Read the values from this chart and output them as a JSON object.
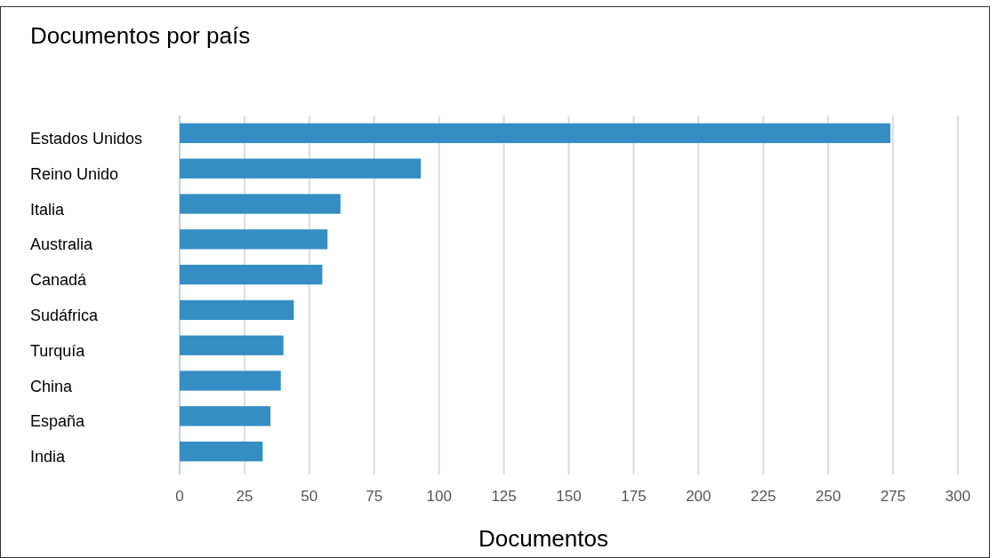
{
  "chart_data": {
    "type": "bar",
    "orientation": "horizontal",
    "title": "Documentos por país",
    "xlabel": "Documentos",
    "categories": [
      "Estados Unidos",
      "Reino Unido",
      "Italia",
      "Australia",
      "Canadá",
      "Sudáfrica",
      "Turquía",
      "China",
      "España",
      "India"
    ],
    "values": [
      274,
      93,
      62,
      57,
      55,
      44,
      40,
      39,
      35,
      32
    ],
    "color": "#348ec4",
    "xlim": [
      0,
      300
    ],
    "xticks": [
      0,
      25,
      50,
      75,
      100,
      125,
      150,
      175,
      200,
      225,
      250,
      275,
      300
    ],
    "grid": "x"
  }
}
